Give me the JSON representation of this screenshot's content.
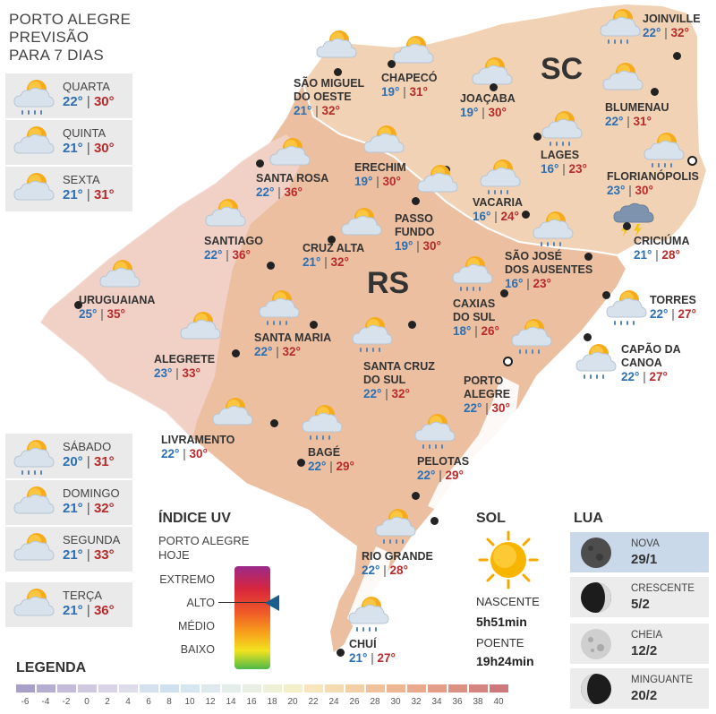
{
  "title": [
    "PORTO ALEGRE",
    "PREVISÃO",
    "PARA 7 DIAS"
  ],
  "colors": {
    "min": "#2c6fb4",
    "max": "#b52b2b",
    "rs_fill": "#ebbfa0",
    "sc_fill": "#f1d2b4",
    "uv_pointer": "#1a5d8c",
    "moon_active": "#c9d9ea"
  },
  "forecast": [
    {
      "day": "QUARTA",
      "min": "22°",
      "max": "30°",
      "icon": "sun-cloud-rain-icon"
    },
    {
      "day": "QUINTA",
      "min": "21°",
      "max": "30°",
      "icon": "sun-cloud-icon"
    },
    {
      "day": "SEXTA",
      "min": "21°",
      "max": "31°",
      "icon": "sun-cloud-icon"
    },
    {
      "day": "SÁBADO",
      "min": "20°",
      "max": "31°",
      "icon": "sun-cloud-rain-icon"
    },
    {
      "day": "DOMINGO",
      "min": "21°",
      "max": "32°",
      "icon": "sun-cloud-icon"
    },
    {
      "day": "SEGUNDA",
      "min": "21°",
      "max": "33°",
      "icon": "sun-cloud-icon"
    },
    {
      "day": "TERÇA",
      "min": "21°",
      "max": "36°",
      "icon": "sun-cloud-icon"
    }
  ],
  "states": {
    "sc": "SC",
    "rs": "RS"
  },
  "cities": [
    {
      "name": "SÃO MIGUEL\nDO OESTE",
      "min": "21°",
      "max": "32°",
      "icon": "sun-cloud-icon"
    },
    {
      "name": "CHAPECÓ",
      "min": "19°",
      "max": "31°",
      "icon": "sun-cloud-icon"
    },
    {
      "name": "JOAÇABA",
      "min": "19°",
      "max": "30°",
      "icon": "sun-cloud-icon"
    },
    {
      "name": "JOINVILLE",
      "min": "22°",
      "max": "32°",
      "icon": "sun-cloud-rain-icon"
    },
    {
      "name": "BLUMENAU",
      "min": "22°",
      "max": "31°",
      "icon": "sun-cloud-icon"
    },
    {
      "name": "LAGES",
      "min": "16°",
      "max": "23°",
      "icon": "sun-cloud-rain-icon"
    },
    {
      "name": "FLORIANÓPOLIS",
      "min": "23°",
      "max": "30°",
      "icon": "sun-cloud-rain-icon"
    },
    {
      "name": "SANTA ROSA",
      "min": "22°",
      "max": "36°",
      "icon": "sun-cloud-icon"
    },
    {
      "name": "ERECHIM",
      "min": "19°",
      "max": "30°",
      "icon": "sun-cloud-icon"
    },
    {
      "name": "VACARIA",
      "min": "16°",
      "max": "24°",
      "icon": "sun-cloud-rain-icon"
    },
    {
      "name": "PASSO\nFUNDO",
      "min": "19°",
      "max": "30°",
      "icon": "sun-cloud-icon"
    },
    {
      "name": "SANTIAGO",
      "min": "22°",
      "max": "36°",
      "icon": "sun-cloud-icon"
    },
    {
      "name": "CRUZ ALTA",
      "min": "21°",
      "max": "32°",
      "icon": "sun-cloud-icon"
    },
    {
      "name": "SÃO JOSÉ\nDOS AUSENTES",
      "min": "16°",
      "max": "23°",
      "icon": "sun-cloud-rain-icon"
    },
    {
      "name": "CRICIÚMA",
      "min": "21°",
      "max": "28°",
      "icon": "cloud-storm-icon"
    },
    {
      "name": "URUGUAIANA",
      "min": "25°",
      "max": "35°",
      "icon": "sun-cloud-icon"
    },
    {
      "name": "CAXIAS\nDO SUL",
      "min": "18°",
      "max": "26°",
      "icon": "sun-cloud-rain-icon"
    },
    {
      "name": "TORRES",
      "min": "22°",
      "max": "27°",
      "icon": "sun-cloud-rain-icon"
    },
    {
      "name": "SANTA MARIA",
      "min": "22°",
      "max": "32°",
      "icon": "sun-cloud-rain-icon"
    },
    {
      "name": "ALEGRETE",
      "min": "23°",
      "max": "33°",
      "icon": "sun-cloud-icon"
    },
    {
      "name": "SANTA CRUZ\nDO SUL",
      "min": "22°",
      "max": "32°",
      "icon": "sun-cloud-rain-icon"
    },
    {
      "name": "PORTO\nALEGRE",
      "min": "22°",
      "max": "30°",
      "icon": "sun-cloud-rain-icon"
    },
    {
      "name": "CAPÃO DA\nCANOA",
      "min": "22°",
      "max": "27°",
      "icon": "sun-cloud-rain-icon"
    },
    {
      "name": "LIVRAMENTO",
      "min": "22°",
      "max": "30°",
      "icon": "sun-cloud-icon"
    },
    {
      "name": "BAGÉ",
      "min": "22°",
      "max": "29°",
      "icon": "sun-cloud-rain-icon"
    },
    {
      "name": "PELOTAS",
      "min": "22°",
      "max": "29°",
      "icon": "sun-cloud-rain-icon"
    },
    {
      "name": "RIO GRANDE",
      "min": "22°",
      "max": "28°",
      "icon": "sun-cloud-rain-icon"
    },
    {
      "name": "CHUÍ",
      "min": "21°",
      "max": "27°",
      "icon": "sun-cloud-rain-icon"
    }
  ],
  "uv": {
    "title": "ÍNDICE UV",
    "subtitle": [
      "PORTO ALEGRE",
      "HOJE"
    ],
    "levels": [
      "EXTREMO",
      "ALTO",
      "MÉDIO",
      "BAIXO"
    ],
    "current": "ALTO"
  },
  "sol": {
    "title": "SOL",
    "sunrise_label": "NASCENTE",
    "sunrise": "5h51min",
    "sunset_label": "POENTE",
    "sunset": "19h24min",
    "icon": "sun-icon"
  },
  "lua": {
    "title": "LUA",
    "phases": [
      {
        "name": "NOVA",
        "date": "29/1",
        "icon": "new-moon-icon",
        "active": true
      },
      {
        "name": "CRESCENTE",
        "date": "5/2",
        "icon": "waxing-moon-icon",
        "active": false
      },
      {
        "name": "CHEIA",
        "date": "12/2",
        "icon": "full-moon-icon",
        "active": false
      },
      {
        "name": "MINGUANTE",
        "date": "20/2",
        "icon": "waning-moon-icon",
        "active": false
      }
    ]
  },
  "legend": {
    "title": "LEGENDA",
    "values": [
      "-6",
      "-4",
      "-2",
      "0",
      "2",
      "4",
      "6",
      "8",
      "10",
      "12",
      "14",
      "16",
      "18",
      "20",
      "22",
      "24",
      "26",
      "28",
      "30",
      "32",
      "34",
      "36",
      "38",
      "40"
    ],
    "colors": [
      "#a8a0c8",
      "#b6aed2",
      "#c3bbd9",
      "#cfc8e0",
      "#d8d3e6",
      "#dcdced",
      "#d6e1f0",
      "#cfe0f1",
      "#d6e6f0",
      "#dde9ee",
      "#e3ede9",
      "#e8efe2",
      "#eef0d8",
      "#f5efc9",
      "#f7e6bd",
      "#f6dbb2",
      "#f3cfa6",
      "#f0c29b",
      "#ecb692",
      "#e8aa8b",
      "#e29e86",
      "#dc9283",
      "#d5857f",
      "#cd787b"
    ]
  }
}
